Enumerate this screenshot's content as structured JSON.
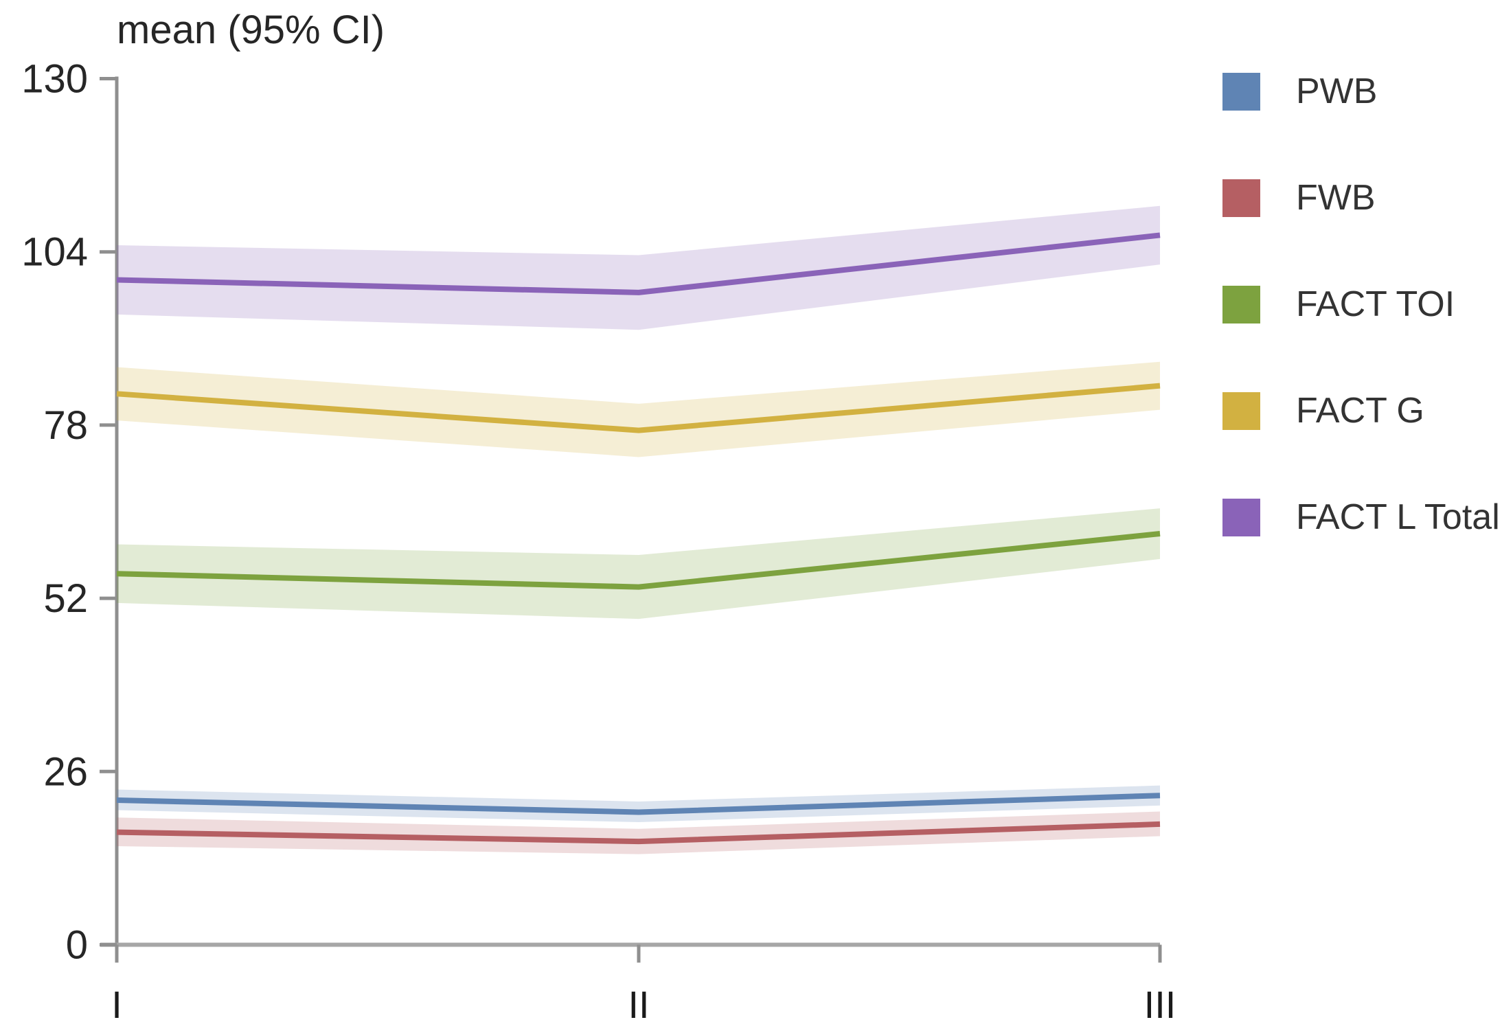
{
  "chart_data": {
    "type": "line",
    "title": "mean (95% CI)",
    "x_categories": [
      "I",
      "II",
      "III"
    ],
    "xlabel": "",
    "ylabel": "mean (95% CI)",
    "ylim": [
      0,
      130
    ],
    "yticks": [
      130,
      104,
      78,
      52,
      26,
      0
    ],
    "grid": false,
    "legend_position": "right",
    "band_style": "shaded 95% confidence interval around each mean line",
    "axis_color": "#8f8f8f",
    "x_axis_color": "#a6a6a6",
    "text_color": "#262626",
    "series": [
      {
        "name": "PWB",
        "color": "#5f84b4",
        "values": [
          21.7,
          19.9,
          22.4
        ],
        "ci_lower": [
          20.2,
          18.4,
          20.9
        ],
        "ci_upper": [
          23.3,
          21.5,
          23.9
        ]
      },
      {
        "name": "FWB",
        "color": "#b55f63",
        "values": [
          16.9,
          15.5,
          18.1
        ],
        "ci_lower": [
          14.8,
          13.6,
          16.3
        ],
        "ci_upper": [
          19.1,
          17.4,
          20.0
        ]
      },
      {
        "name": "FACT TOI",
        "color": "#7da23f",
        "values": [
          55.7,
          53.7,
          61.7
        ],
        "ci_lower": [
          51.3,
          48.9,
          57.9
        ],
        "ci_upper": [
          60.1,
          58.5,
          65.5
        ]
      },
      {
        "name": "FACT G",
        "color": "#d2b141",
        "values": [
          82.7,
          77.2,
          83.9
        ],
        "ci_lower": [
          78.7,
          73.2,
          80.3
        ],
        "ci_upper": [
          86.7,
          81.2,
          87.5
        ]
      },
      {
        "name": "FACT L Total",
        "color": "#8a63b8",
        "values": [
          99.8,
          97.9,
          106.5
        ],
        "ci_lower": [
          94.6,
          92.3,
          102.1
        ],
        "ci_upper": [
          105.0,
          103.5,
          110.9
        ]
      }
    ]
  }
}
